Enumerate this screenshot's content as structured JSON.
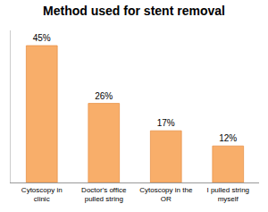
{
  "chart_data": {
    "type": "bar",
    "title": "Method used for stent removal",
    "categories": [
      "Cytoscopy in clinic",
      "Doctor's office pulled string",
      "Cytoscopy in the OR",
      "I pulled string myself"
    ],
    "values": [
      45,
      26,
      17,
      12
    ],
    "value_labels": [
      "45%",
      "26%",
      "17%",
      "12%"
    ],
    "color": "#f8ae6a",
    "ylim": [
      0,
      50
    ],
    "grid": false,
    "data_labels": true,
    "tick_labels": "x"
  }
}
